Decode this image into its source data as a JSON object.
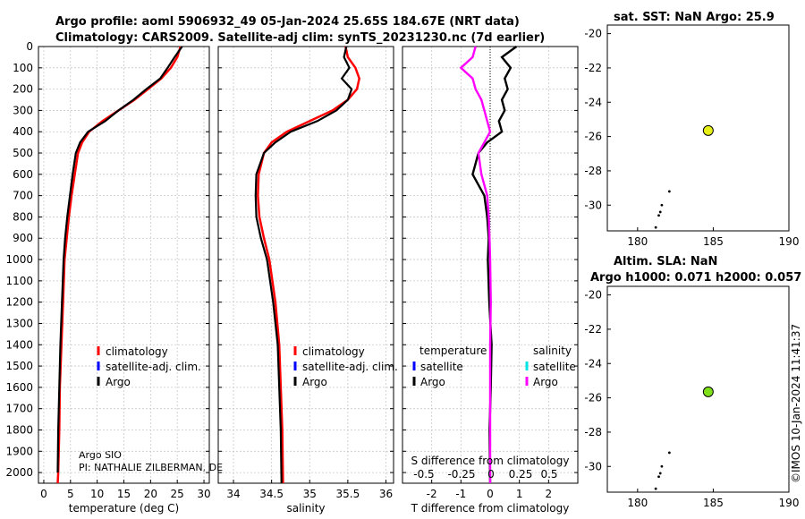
{
  "header": {
    "title1": "Argo profile: aoml 5906932_49 05-Jan-2024 25.65S 184.67E (NRT data)",
    "title2": "Climatology: CARS2009. Satellite-adj clim: synTS_20231230.nc (7d earlier)"
  },
  "footer": {
    "credit1": "Argo SIO",
    "credit2": "PI: NATHALIE ZILBERMAN, DE",
    "stamp": "©IMOS 10-Jan-2024 11:41:37"
  },
  "depth_ticks": [
    "0",
    "100",
    "200",
    "300",
    "400",
    "500",
    "600",
    "700",
    "800",
    "900",
    "1000",
    "1100",
    "1200",
    "1300",
    "1400",
    "1500",
    "1600",
    "1700",
    "1800",
    "1900",
    "2000"
  ],
  "colors": {
    "climatology": "#ff0000",
    "satellite": "#0000ff",
    "argo": "#000000",
    "salinity_sat": "#00e5e5",
    "salinity_argo": "#ff00ff",
    "sst_marker": "#e6f016",
    "sla_marker": "#7fe01a"
  },
  "chart_data": [
    {
      "type": "line",
      "name": "temperature",
      "xlabel": "temperature (deg C)",
      "ylabel": "depth",
      "xlim": [
        -1,
        31
      ],
      "ylim": [
        2050,
        0
      ],
      "xticks": [
        "0",
        "5",
        "10",
        "15",
        "20",
        "25",
        "30"
      ],
      "legend": [
        "climatology",
        "satellite-adj. clim.",
        "Argo"
      ],
      "series": [
        {
          "name": "climatology",
          "x": [
            25.6,
            25.0,
            23.8,
            22.0,
            19.5,
            17.0,
            14.0,
            11.0,
            8.5,
            7.2,
            6.4,
            5.8,
            5.2,
            4.7,
            4.3,
            3.9,
            3.6,
            3.3,
            3.0,
            2.9,
            2.7,
            2.6
          ],
          "y": [
            0,
            50,
            100,
            150,
            200,
            250,
            300,
            350,
            400,
            450,
            500,
            600,
            700,
            800,
            900,
            1000,
            1200,
            1400,
            1600,
            1800,
            2000,
            2050
          ]
        },
        {
          "name": "Argo",
          "x": [
            25.9,
            24.5,
            23.2,
            21.8,
            19.2,
            16.8,
            14.0,
            11.5,
            8.3,
            6.8,
            6.0,
            5.4,
            4.9,
            4.4,
            4.0,
            3.7,
            3.4,
            3.1,
            2.9,
            2.7,
            2.6
          ],
          "y": [
            0,
            50,
            100,
            150,
            200,
            250,
            300,
            350,
            400,
            450,
            500,
            600,
            700,
            800,
            900,
            1000,
            1200,
            1400,
            1600,
            1800,
            2000
          ]
        }
      ]
    },
    {
      "type": "line",
      "name": "salinity",
      "xlabel": "salinity",
      "xlim": [
        33.8,
        36.1
      ],
      "ylim": [
        2050,
        0
      ],
      "xticks": [
        "34",
        "34.5",
        "35",
        "35.5",
        "36"
      ],
      "legend": [
        "climatology",
        "satellite-adj. clim.",
        "Argo"
      ],
      "series": [
        {
          "name": "climatology",
          "x": [
            35.47,
            35.5,
            35.6,
            35.65,
            35.62,
            35.5,
            35.3,
            35.0,
            34.7,
            34.5,
            34.4,
            34.33,
            34.32,
            34.34,
            34.4,
            34.47,
            34.55,
            34.6,
            34.62,
            34.64,
            34.65
          ],
          "y": [
            0,
            50,
            100,
            150,
            200,
            250,
            300,
            350,
            400,
            450,
            500,
            600,
            700,
            800,
            900,
            1000,
            1200,
            1400,
            1600,
            1800,
            2050
          ]
        },
        {
          "name": "Argo",
          "x": [
            35.48,
            35.45,
            35.52,
            35.42,
            35.55,
            35.5,
            35.35,
            35.1,
            34.75,
            34.55,
            34.4,
            34.3,
            34.29,
            34.3,
            34.36,
            34.44,
            34.52,
            34.58,
            34.6,
            34.62,
            34.63
          ],
          "y": [
            0,
            50,
            100,
            150,
            200,
            250,
            300,
            350,
            400,
            450,
            500,
            600,
            700,
            800,
            900,
            1000,
            1200,
            1400,
            1600,
            1800,
            2050
          ]
        }
      ]
    },
    {
      "type": "line",
      "name": "T difference from climatology",
      "xlabel": "T difference from climatology",
      "secondary_xlabel": "S difference from climatology",
      "xlim": [
        -3,
        3
      ],
      "ylim": [
        2050,
        0
      ],
      "xticks": [
        "-2",
        "-1",
        "0",
        "1",
        "2"
      ],
      "secondary_xticks": [
        "-0.5",
        "-0.25",
        "0",
        "0.25",
        "0.5"
      ],
      "legend_titles": [
        "temperature",
        "salinity"
      ],
      "legend_left": [
        "satellite",
        "Argo"
      ],
      "legend_right": [
        "satellite",
        "Argo"
      ],
      "series": [
        {
          "name": "T Argo",
          "x": [
            0.9,
            0.4,
            0.7,
            0.5,
            0.6,
            0.4,
            0.5,
            0.3,
            0.4,
            -0.1,
            -0.4,
            -0.6,
            -0.2,
            -0.1,
            -0.05,
            -0.08,
            -0.03,
            0.05,
            0.02,
            -0.02,
            0.0
          ],
          "y": [
            0,
            50,
            100,
            150,
            200,
            250,
            300,
            350,
            400,
            450,
            500,
            600,
            700,
            800,
            900,
            1000,
            1200,
            1400,
            1600,
            1800,
            2050
          ]
        },
        {
          "name": "S Argo",
          "x": [
            -0.5,
            -0.6,
            -1.0,
            -0.6,
            -0.5,
            -0.3,
            -0.2,
            -0.1,
            0.0,
            -0.2,
            -0.4,
            -0.3,
            -0.1,
            -0.05,
            -0.02,
            0.0,
            0.02,
            0.0,
            0.0,
            0.0,
            0.0
          ],
          "y": [
            0,
            50,
            100,
            150,
            200,
            250,
            300,
            350,
            400,
            450,
            500,
            600,
            700,
            800,
            900,
            1000,
            1200,
            1400,
            1600,
            1800,
            2050
          ]
        }
      ]
    },
    {
      "type": "scatter",
      "name": "sst map",
      "title": "sat. SST: NaN Argo: 25.9",
      "xlim": [
        178,
        190
      ],
      "ylim": [
        -31.5,
        -19.5
      ],
      "xticks": [
        "180",
        "185",
        "190"
      ],
      "yticks": [
        "-20",
        "-22",
        "-24",
        "-26",
        "-28",
        "-30"
      ],
      "points": [
        [
          184.67,
          -25.65
        ]
      ],
      "track": [
        [
          182.1,
          -29.2
        ],
        [
          181.6,
          -30.0
        ],
        [
          181.5,
          -30.4
        ],
        [
          181.4,
          -30.6
        ],
        [
          181.2,
          -31.3
        ]
      ]
    },
    {
      "type": "scatter",
      "name": "sla map",
      "title": "Altim. SLA: NaN",
      "subtitle": "Argo h1000: 0.071 h2000: 0.057",
      "xlim": [
        178,
        190
      ],
      "ylim": [
        -31.5,
        -19.5
      ],
      "xticks": [
        "180",
        "185",
        "190"
      ],
      "yticks": [
        "-20",
        "-22",
        "-24",
        "-26",
        "-28",
        "-30"
      ],
      "points": [
        [
          184.67,
          -25.65
        ]
      ],
      "track": [
        [
          182.1,
          -29.2
        ],
        [
          181.6,
          -30.0
        ],
        [
          181.5,
          -30.4
        ],
        [
          181.4,
          -30.6
        ],
        [
          181.2,
          -31.3
        ]
      ]
    }
  ]
}
